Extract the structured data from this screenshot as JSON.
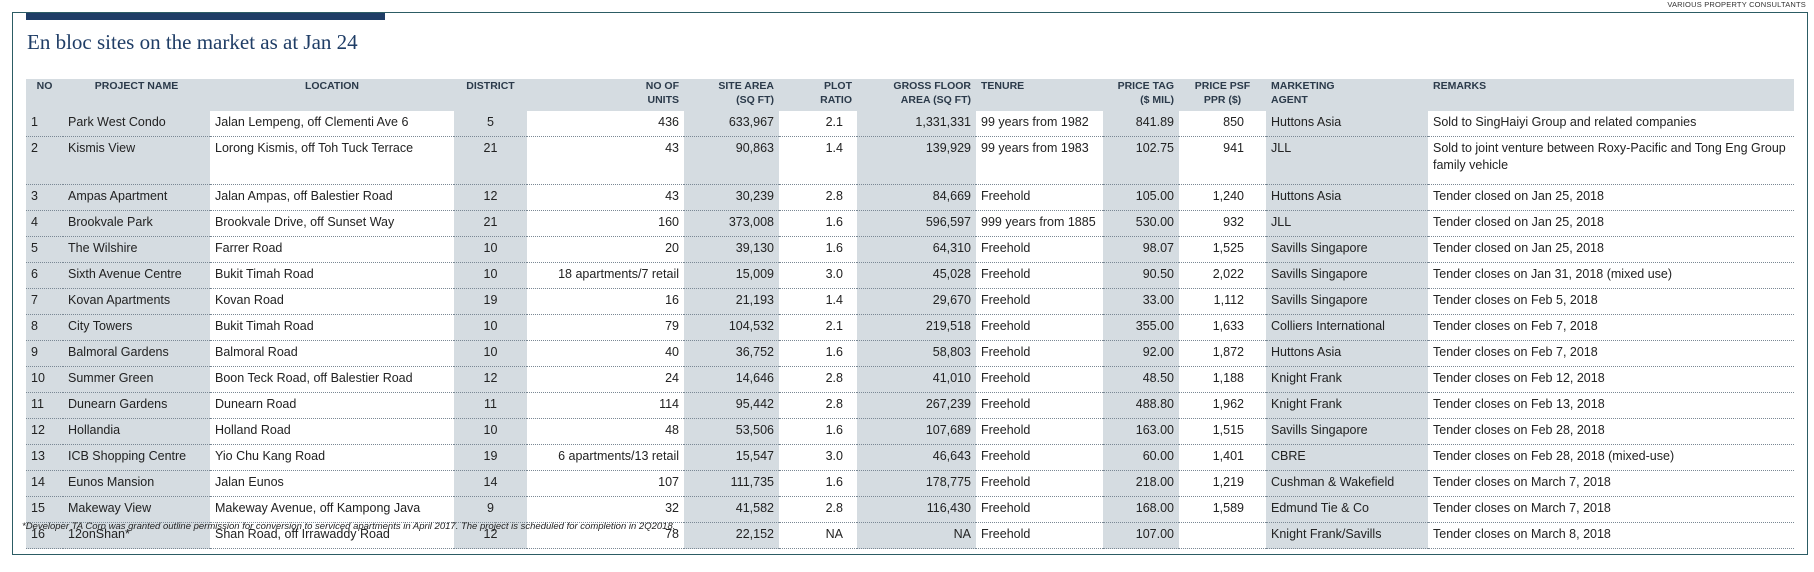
{
  "source_label": "VARIOUS PROPERTY CONSULTANTS",
  "title": "En bloc sites on the market as at Jan 24",
  "headers": {
    "no": "NO",
    "project": "PROJECT NAME",
    "location": "LOCATION",
    "district": "DISTRICT",
    "units_1": "NO OF",
    "units_2": "UNITS",
    "site_1": "SITE AREA",
    "site_2": "(SQ FT)",
    "plot_1": "PLOT",
    "plot_2": "RATIO",
    "gfa_1": "GROSS FLOOR",
    "gfa_2": "AREA (SQ FT)",
    "tenure": "TENURE",
    "price_1": "PRICE TAG",
    "price_2": "($ MIL)",
    "psf_1": "PRICE PSF",
    "psf_2": "PPR ($)",
    "agent_1": "MARKETING",
    "agent_2": "AGENT",
    "remarks": "REMARKS"
  },
  "rows": [
    {
      "no": "1",
      "project": "Park West Condo",
      "location": "Jalan Lempeng, off Clementi Ave 6",
      "district": "5",
      "units": "436",
      "site": "633,967",
      "plot": "2.1",
      "gfa": "1,331,331",
      "tenure": "99 years from 1982",
      "price": "841.89",
      "psf": "850",
      "agent": "Huttons Asia",
      "remarks": "Sold to SingHaiyi Group and related companies"
    },
    {
      "no": "2",
      "project": "Kismis View",
      "location": "Lorong Kismis, off Toh Tuck Terrace",
      "district": "21",
      "units": "43",
      "site": "90,863",
      "plot": "1.4",
      "gfa": "139,929",
      "tenure": "99 years from 1983",
      "price": "102.75",
      "psf": "941",
      "agent": "JLL",
      "remarks": "Sold to joint venture between Roxy-Pacific and Tong Eng Group family vehicle"
    },
    {
      "no": "3",
      "project": "Ampas Apartment",
      "location": "Jalan Ampas, off Balestier Road",
      "district": "12",
      "units": "43",
      "site": "30,239",
      "plot": "2.8",
      "gfa": "84,669",
      "tenure": "Freehold",
      "price": "105.00",
      "psf": "1,240",
      "agent": "Huttons Asia",
      "remarks": "Tender closed on Jan 25, 2018"
    },
    {
      "no": "4",
      "project": "Brookvale Park",
      "location": "Brookvale Drive, off Sunset Way",
      "district": "21",
      "units": "160",
      "site": "373,008",
      "plot": "1.6",
      "gfa": "596,597",
      "tenure": "999 years from 1885",
      "price": "530.00",
      "psf": "932",
      "agent": "JLL",
      "remarks": "Tender closed on Jan 25, 2018"
    },
    {
      "no": "5",
      "project": "The Wilshire",
      "location": "Farrer Road",
      "district": "10",
      "units": "20",
      "site": "39,130",
      "plot": "1.6",
      "gfa": "64,310",
      "tenure": "Freehold",
      "price": "98.07",
      "psf": "1,525",
      "agent": "Savills Singapore",
      "remarks": "Tender closed on Jan 25, 2018"
    },
    {
      "no": "6",
      "project": "Sixth Avenue Centre",
      "location": "Bukit Timah Road",
      "district": "10",
      "units": "18 apartments/7 retail",
      "site": "15,009",
      "plot": "3.0",
      "gfa": "45,028",
      "tenure": "Freehold",
      "price": "90.50",
      "psf": "2,022",
      "agent": "Savills Singapore",
      "remarks": "Tender closes on Jan 31, 2018 (mixed use)"
    },
    {
      "no": "7",
      "project": "Kovan Apartments",
      "location": "Kovan Road",
      "district": "19",
      "units": "16",
      "site": "21,193",
      "plot": "1.4",
      "gfa": "29,670",
      "tenure": "Freehold",
      "price": "33.00",
      "psf": "1,112",
      "agent": "Savills Singapore",
      "remarks": "Tender closes on Feb 5, 2018"
    },
    {
      "no": "8",
      "project": "City Towers",
      "location": "Bukit Timah Road",
      "district": "10",
      "units": "79",
      "site": "104,532",
      "plot": "2.1",
      "gfa": "219,518",
      "tenure": "Freehold",
      "price": "355.00",
      "psf": "1,633",
      "agent": "Colliers International",
      "remarks": "Tender closes on Feb 7, 2018"
    },
    {
      "no": "9",
      "project": "Balmoral Gardens",
      "location": "Balmoral Road",
      "district": "10",
      "units": "40",
      "site": "36,752",
      "plot": "1.6",
      "gfa": "58,803",
      "tenure": "Freehold",
      "price": "92.00",
      "psf": "1,872",
      "agent": "Huttons Asia",
      "remarks": "Tender closes on Feb 7, 2018"
    },
    {
      "no": "10",
      "project": "Summer Green",
      "location": "Boon Teck Road, off Balestier Road",
      "district": "12",
      "units": "24",
      "site": "14,646",
      "plot": "2.8",
      "gfa": "41,010",
      "tenure": "Freehold",
      "price": "48.50",
      "psf": "1,188",
      "agent": "Knight Frank",
      "remarks": "Tender closes on Feb 12, 2018"
    },
    {
      "no": "11",
      "project": "Dunearn Gardens",
      "location": "Dunearn Road",
      "district": "11",
      "units": "114",
      "site": "95,442",
      "plot": "2.8",
      "gfa": "267,239",
      "tenure": "Freehold",
      "price": "488.80",
      "psf": "1,962",
      "agent": "Knight Frank",
      "remarks": "Tender closes on Feb 13, 2018"
    },
    {
      "no": "12",
      "project": "Hollandia",
      "location": "Holland Road",
      "district": "10",
      "units": "48",
      "site": "53,506",
      "plot": "1.6",
      "gfa": "107,689",
      "tenure": "Freehold",
      "price": "163.00",
      "psf": "1,515",
      "agent": "Savills Singapore",
      "remarks": "Tender closes on Feb 28, 2018"
    },
    {
      "no": "13",
      "project": "ICB Shopping Centre",
      "location": "Yio Chu Kang Road",
      "district": "19",
      "units": "6 apartments/13 retail",
      "site": "15,547",
      "plot": "3.0",
      "gfa": "46,643",
      "tenure": "Freehold",
      "price": "60.00",
      "psf": "1,401",
      "agent": "CBRE",
      "remarks": "Tender closes on Feb 28, 2018 (mixed-use)"
    },
    {
      "no": "14",
      "project": "Eunos Mansion",
      "location": "Jalan Eunos",
      "district": "14",
      "units": "107",
      "site": "111,735",
      "plot": "1.6",
      "gfa": "178,775",
      "tenure": "Freehold",
      "price": "218.00",
      "psf": "1,219",
      "agent": "Cushman & Wakefield",
      "remarks": "Tender closes on March 7, 2018"
    },
    {
      "no": "15",
      "project": "Makeway View",
      "location": "Makeway Avenue, off Kampong Java",
      "district": "9",
      "units": "32",
      "site": "41,582",
      "plot": "2.8",
      "gfa": "116,430",
      "tenure": "Freehold",
      "price": "168.00",
      "psf": "1,589",
      "agent": "Edmund Tie & Co",
      "remarks": "Tender closes on March 7, 2018"
    },
    {
      "no": "16",
      "project": "12onShan*",
      "location": "Shan Road, off Irrawaddy Road",
      "district": "12",
      "units": "78",
      "site": "22,152",
      "plot": "NA",
      "gfa": "NA",
      "tenure": "Freehold",
      "price": "107.00",
      "psf": "",
      "agent": "Knight Frank/Savills",
      "remarks": "Tender closes on March 8, 2018"
    }
  ],
  "footnote": "*Developer TA Corp  was granted outline permission for conversion to serviced apartments in April 2017. The project is scheduled for completion in 2Q2018."
}
